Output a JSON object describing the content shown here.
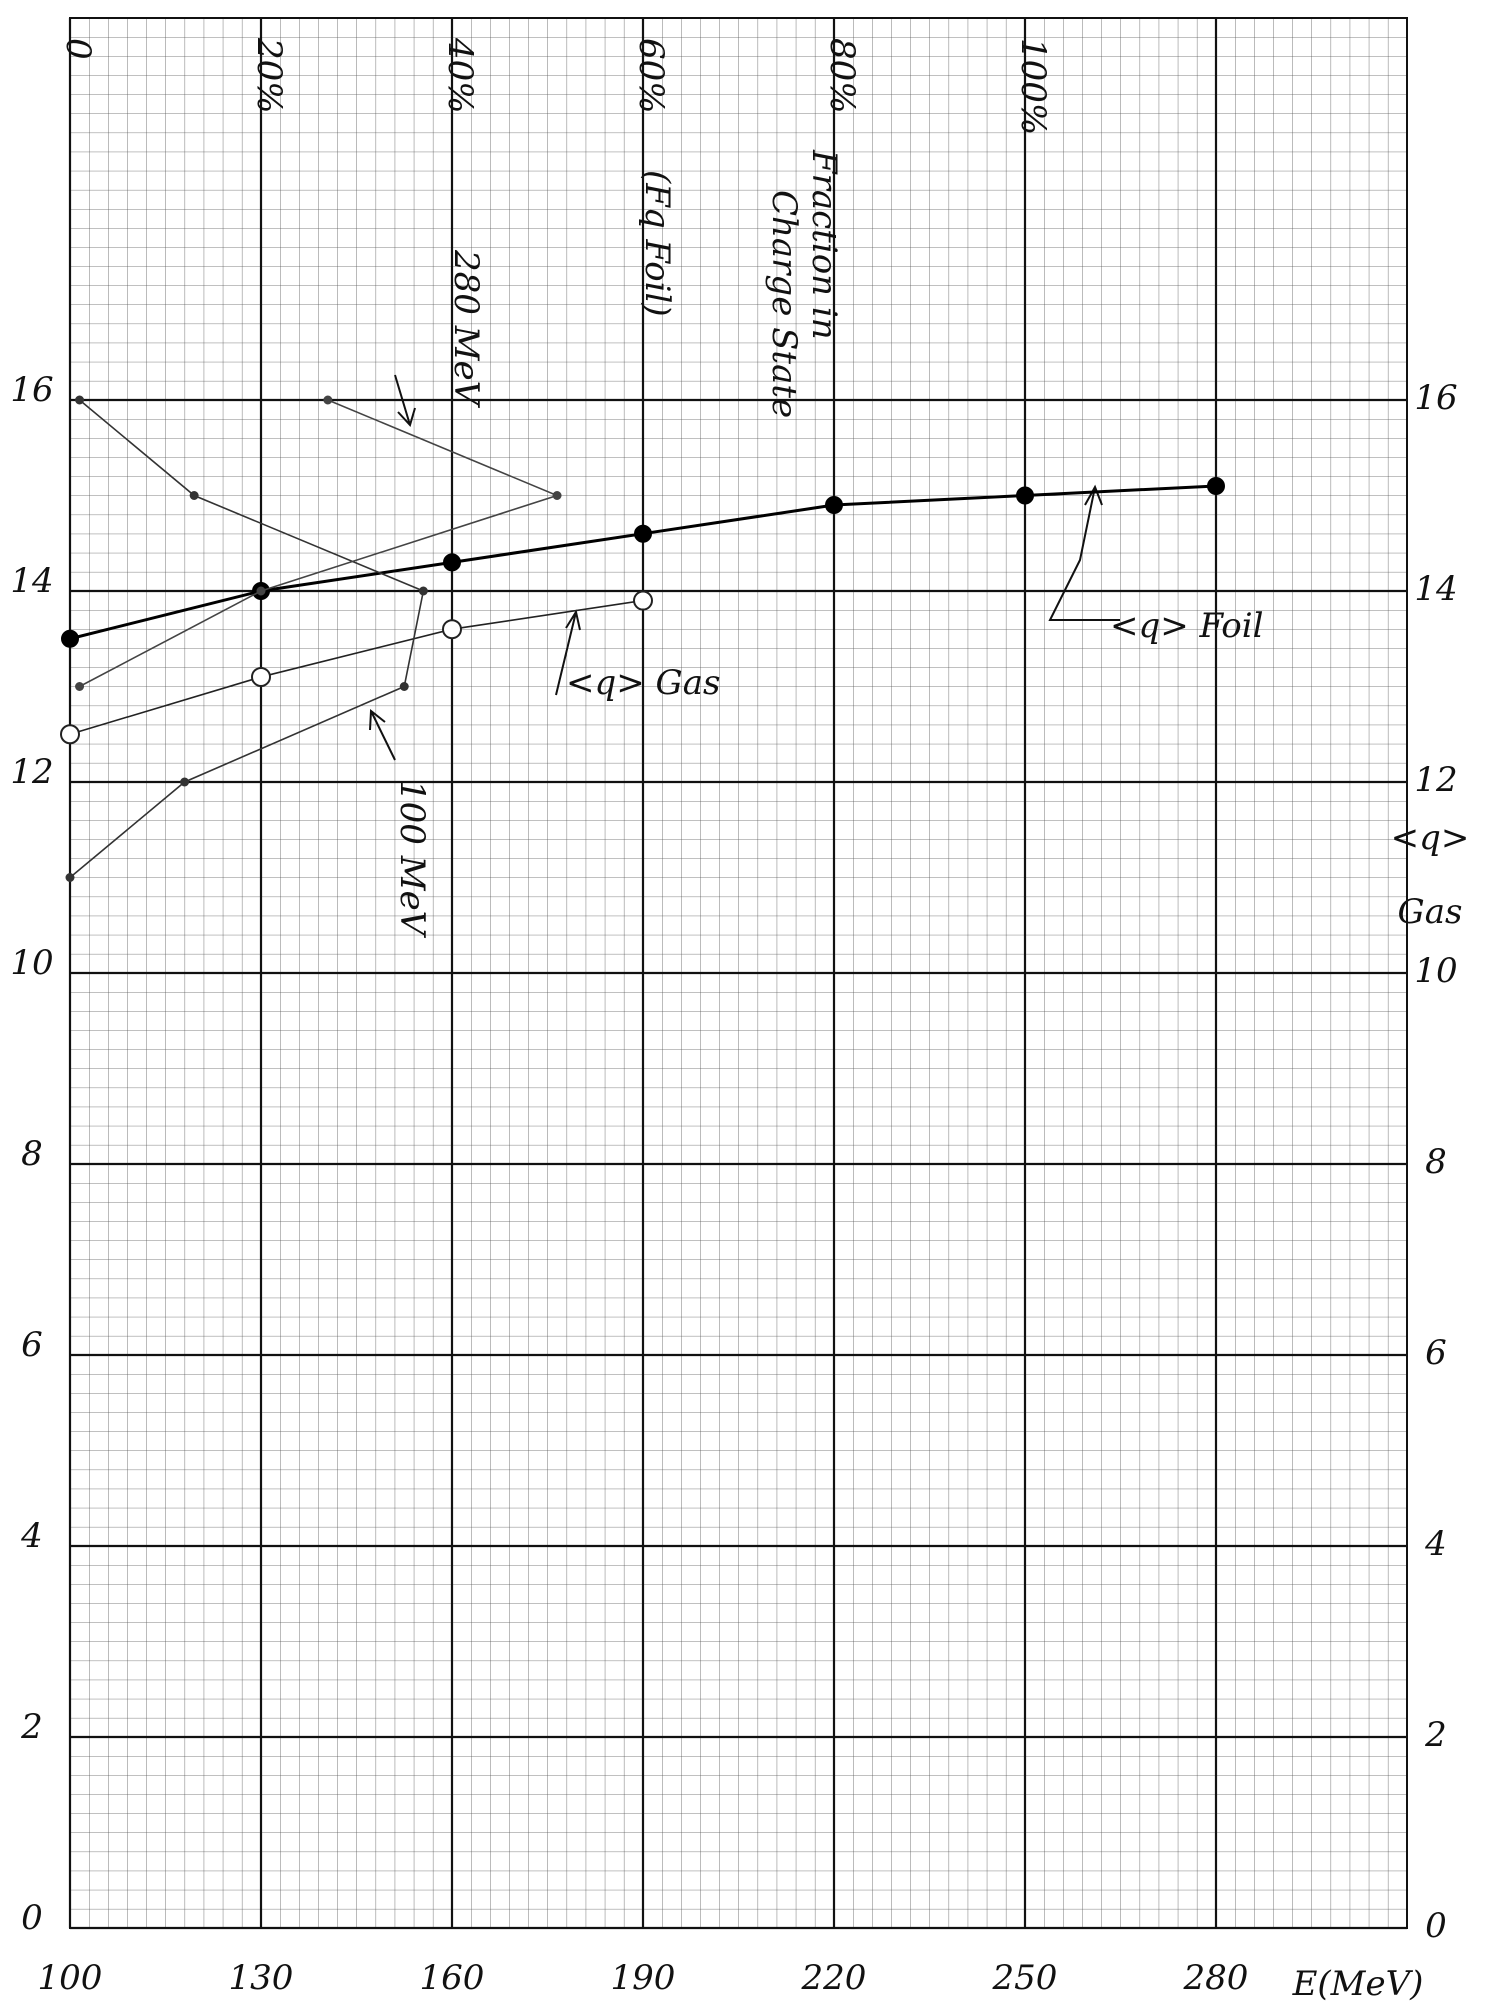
{
  "chart_data": {
    "type": "line",
    "x_label": "E(MeV)",
    "right_axis_label": [
      "<q>",
      "Gas"
    ],
    "annotations": [
      "Fraction in",
      "Charge State",
      "(Fq Foil)"
    ],
    "xlim": [
      100,
      310
    ],
    "xticks": [
      100,
      130,
      160,
      190,
      220,
      250,
      280
    ],
    "x2lim": [
      0,
      140
    ],
    "x2ticks": [
      {
        "value": 0,
        "label": "0"
      },
      {
        "value": 20,
        "label": "20%"
      },
      {
        "value": 40,
        "label": "40%"
      },
      {
        "value": 60,
        "label": "60%"
      },
      {
        "value": 80,
        "label": "80%"
      },
      {
        "value": 100,
        "label": "100%"
      }
    ],
    "ylim": [
      0,
      20
    ],
    "yticks": [
      0,
      2,
      4,
      6,
      8,
      10,
      12,
      14,
      16
    ],
    "grid": true,
    "series": [
      {
        "name": "<q> Foil",
        "color": "#000000",
        "marker": "filled",
        "x": [
          100,
          130,
          160,
          190,
          220,
          250,
          280
        ],
        "values": [
          13.5,
          14.0,
          14.3,
          14.6,
          14.9,
          15.0,
          15.1
        ]
      },
      {
        "name": "<q> Gas",
        "color": "#222222",
        "marker": "open",
        "x": [
          100,
          130,
          160,
          190
        ],
        "values": [
          12.5,
          13.1,
          13.6,
          13.9
        ]
      },
      {
        "name": "100 MeV",
        "color": "#333333",
        "marker": "dot",
        "axis": "x2",
        "x": [
          0,
          12,
          35,
          37,
          13,
          1
        ],
        "values": [
          11,
          12,
          13,
          14,
          15,
          16
        ]
      },
      {
        "name": "280 MeV",
        "color": "#444444",
        "marker": "dot",
        "axis": "x2",
        "x": [
          1,
          20,
          51,
          27
        ],
        "values": [
          13,
          14,
          15,
          16
        ]
      }
    ]
  }
}
